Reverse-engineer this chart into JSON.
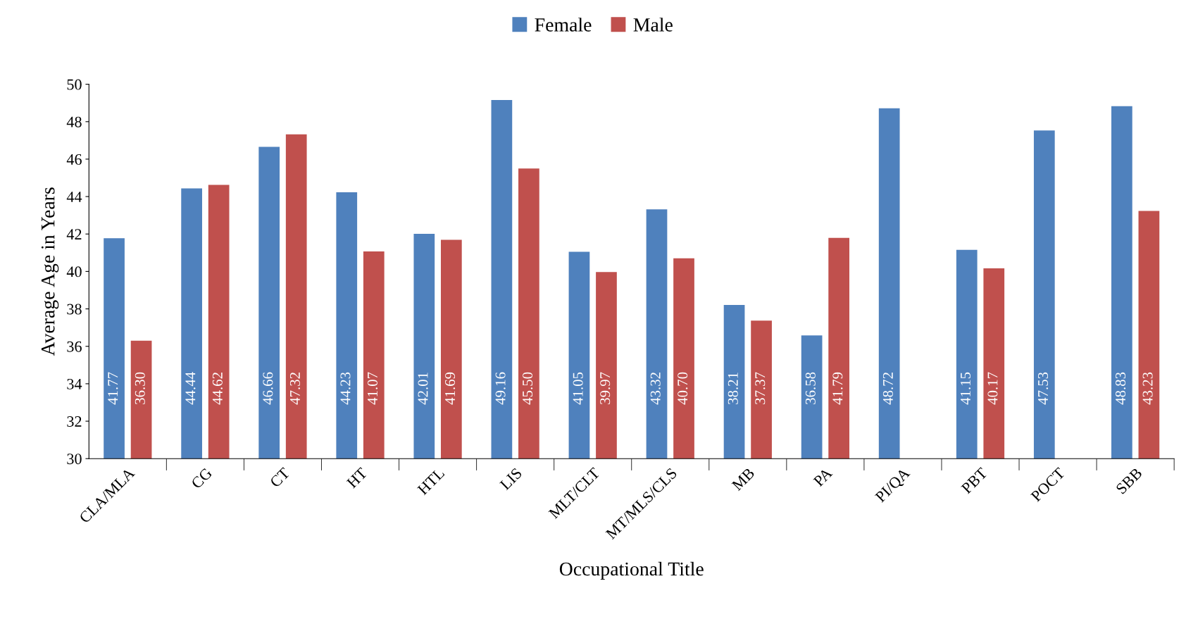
{
  "chart_data": {
    "type": "bar",
    "xlabel": "Occupational Title",
    "ylabel": "Average Age in Years",
    "categories": [
      "CLA/MLA",
      "CG",
      "CT",
      "HT",
      "HTL",
      "LIS",
      "MLT/CLT",
      "MT/MLS/CLS",
      "MB",
      "PA",
      "PI/QA",
      "PBT",
      "POCT",
      "SBB"
    ],
    "series": [
      {
        "name": "Female",
        "color": "#4f81bd",
        "values": [
          41.77,
          44.44,
          46.66,
          44.23,
          42.01,
          49.16,
          41.05,
          43.32,
          38.21,
          36.58,
          48.72,
          41.15,
          47.53,
          48.83
        ],
        "value_labels": [
          "41.77",
          "44.44",
          "46.66",
          "44.23",
          "42.01",
          "49.16",
          "41.05",
          "43.32",
          "38.21",
          "36.58",
          "48.72",
          "41.15",
          "47.53",
          "48.83"
        ]
      },
      {
        "name": "Male",
        "color": "#c0504d",
        "values": [
          36.3,
          44.62,
          47.32,
          41.07,
          41.69,
          45.5,
          39.97,
          40.7,
          37.37,
          41.79,
          null,
          40.17,
          null,
          43.23
        ],
        "value_labels": [
          "36.30",
          "44.62",
          "47.32",
          "41.07",
          "41.69",
          "45.50",
          "39.97",
          "40.70",
          "37.37",
          "41.79",
          null,
          "40.17",
          null,
          "43.23"
        ]
      }
    ],
    "ylim": [
      30,
      50
    ],
    "yticks": [
      30,
      32,
      34,
      36,
      38,
      40,
      42,
      44,
      46,
      48,
      50
    ],
    "grid": false,
    "legend": "top"
  }
}
